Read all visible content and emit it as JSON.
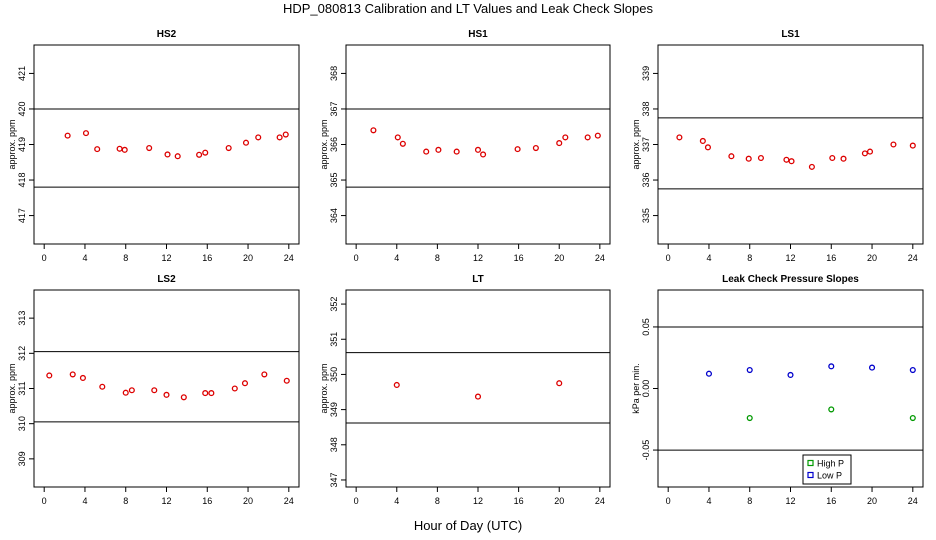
{
  "title": "HDP_080813  Calibration and LT Values and Leak Check Slopes",
  "x_axis_title": "Hour of Day (UTC)",
  "colors": {
    "calibration_points": "#dd0000",
    "high_p": "#009900",
    "low_p": "#0000cc",
    "axis": "#000000"
  },
  "chart_data": [
    {
      "type": "scatter",
      "title": "HS2",
      "ylabel": "approx. ppm",
      "xlim": [
        -1,
        25
      ],
      "ylim": [
        416.2,
        421.8
      ],
      "xticks": [
        0,
        4,
        8,
        12,
        16,
        20,
        24
      ],
      "xtick_labels": [
        "0",
        "4",
        "8",
        "12",
        "16",
        "20",
        "24"
      ],
      "yticks": [
        417,
        418,
        419,
        420,
        421
      ],
      "ytick_labels": [
        "417",
        "418",
        "419",
        "420",
        "421"
      ],
      "hlines": [
        420,
        417.8
      ],
      "series": [
        {
          "marker": "circle",
          "color": "#dd0000",
          "x": [
            2.3,
            4.1,
            5.2,
            7.4,
            7.9,
            10.3,
            12.1,
            13.1,
            15.2,
            15.8,
            18.1,
            19.8,
            21.0,
            23.1,
            23.7
          ],
          "y": [
            419.25,
            419.32,
            418.87,
            418.88,
            418.85,
            418.9,
            418.72,
            418.67,
            418.71,
            418.77,
            418.9,
            419.05,
            419.2,
            419.2,
            419.28
          ]
        }
      ]
    },
    {
      "type": "scatter",
      "title": "HS1",
      "ylabel": "approx. ppm",
      "xlim": [
        -1,
        25
      ],
      "ylim": [
        363.2,
        368.8
      ],
      "xticks": [
        0,
        4,
        8,
        12,
        16,
        20,
        24
      ],
      "xtick_labels": [
        "0",
        "4",
        "8",
        "12",
        "16",
        "20",
        "24"
      ],
      "yticks": [
        364,
        365,
        366,
        367,
        368
      ],
      "ytick_labels": [
        "364",
        "365",
        "366",
        "367",
        "368"
      ],
      "hlines": [
        367,
        364.8
      ],
      "series": [
        {
          "marker": "circle",
          "color": "#dd0000",
          "x": [
            1.7,
            4.1,
            4.6,
            6.9,
            8.1,
            9.9,
            12.0,
            12.5,
            15.9,
            17.7,
            20.0,
            20.6,
            22.8,
            23.8
          ],
          "y": [
            366.4,
            366.2,
            366.02,
            365.8,
            365.85,
            365.8,
            365.85,
            365.72,
            365.87,
            365.9,
            366.04,
            366.2,
            366.2,
            366.25
          ]
        }
      ]
    },
    {
      "type": "scatter",
      "title": "LS1",
      "ylabel": "approx. ppm",
      "xlim": [
        -1,
        25
      ],
      "ylim": [
        334.2,
        339.8
      ],
      "xticks": [
        0,
        4,
        8,
        12,
        16,
        20,
        24
      ],
      "xtick_labels": [
        "0",
        "4",
        "8",
        "12",
        "16",
        "20",
        "24"
      ],
      "yticks": [
        335,
        336,
        337,
        338,
        339
      ],
      "ytick_labels": [
        "335",
        "336",
        "337",
        "338",
        "339"
      ],
      "hlines": [
        337.75,
        335.75
      ],
      "series": [
        {
          "marker": "circle",
          "color": "#dd0000",
          "x": [
            1.1,
            3.4,
            3.9,
            6.2,
            7.9,
            9.1,
            11.6,
            12.1,
            14.1,
            16.1,
            17.2,
            19.3,
            19.8,
            22.1,
            24.0
          ],
          "y": [
            337.2,
            337.1,
            336.92,
            336.67,
            336.6,
            336.62,
            336.57,
            336.53,
            336.37,
            336.62,
            336.6,
            336.75,
            336.8,
            337.0,
            336.97
          ]
        }
      ]
    },
    {
      "type": "scatter",
      "title": "LS2",
      "ylabel": "approx. ppm",
      "xlim": [
        -1,
        25
      ],
      "ylim": [
        308.2,
        313.8
      ],
      "xticks": [
        0,
        4,
        8,
        12,
        16,
        20,
        24
      ],
      "xtick_labels": [
        "0",
        "4",
        "8",
        "12",
        "16",
        "20",
        "24"
      ],
      "yticks": [
        309,
        310,
        311,
        312,
        313
      ],
      "ytick_labels": [
        "309",
        "310",
        "311",
        "312",
        "313"
      ],
      "hlines": [
        312.05,
        310.05
      ],
      "series": [
        {
          "marker": "circle",
          "color": "#dd0000",
          "x": [
            0.5,
            2.8,
            3.8,
            5.7,
            8.0,
            8.6,
            10.8,
            12.0,
            13.7,
            15.8,
            16.4,
            18.7,
            19.7,
            21.6,
            23.8
          ],
          "y": [
            311.37,
            311.4,
            311.3,
            311.05,
            310.88,
            310.95,
            310.95,
            310.82,
            310.75,
            310.87,
            310.87,
            311.0,
            311.15,
            311.4,
            311.22
          ]
        }
      ]
    },
    {
      "type": "scatter",
      "title": "LT",
      "ylabel": "approx. ppm",
      "xlim": [
        -1,
        25
      ],
      "ylim": [
        346.8,
        352.4
      ],
      "xticks": [
        0,
        4,
        8,
        12,
        16,
        20,
        24
      ],
      "xtick_labels": [
        "0",
        "4",
        "8",
        "12",
        "16",
        "20",
        "24"
      ],
      "yticks": [
        347,
        348,
        349,
        350,
        351,
        352
      ],
      "ytick_labels": [
        "347",
        "348",
        "349",
        "350",
        "351",
        "352"
      ],
      "hlines": [
        350.62,
        348.62
      ],
      "series": [
        {
          "marker": "circle",
          "color": "#dd0000",
          "x": [
            4.0,
            12.0,
            20.0
          ],
          "y": [
            349.7,
            349.37,
            349.75
          ]
        }
      ]
    },
    {
      "type": "scatter",
      "title": "Leak Check Pressure Slopes",
      "ylabel": "kPa per min.",
      "xlim": [
        -1,
        25
      ],
      "ylim": [
        -0.08,
        0.08
      ],
      "xticks": [
        0,
        4,
        8,
        12,
        16,
        20,
        24
      ],
      "xtick_labels": [
        "0",
        "4",
        "8",
        "12",
        "16",
        "20",
        "24"
      ],
      "yticks": [
        -0.05,
        0.0,
        0.05
      ],
      "ytick_labels": [
        "-0.05",
        "0.00",
        "0.05"
      ],
      "hlines": [
        0.05,
        -0.05
      ],
      "legend": {
        "position": "bottom-center",
        "entries": [
          {
            "label": "High P",
            "color": "#009900"
          },
          {
            "label": "Low P",
            "color": "#0000cc"
          }
        ]
      },
      "series": [
        {
          "name": "High P",
          "marker": "circle",
          "color": "#009900",
          "x": [
            8,
            16,
            24
          ],
          "y": [
            -0.024,
            -0.017,
            -0.024
          ]
        },
        {
          "name": "Low P",
          "marker": "circle",
          "color": "#0000cc",
          "x": [
            4,
            8,
            12,
            16,
            20,
            24
          ],
          "y": [
            0.012,
            0.015,
            0.011,
            0.018,
            0.017,
            0.015
          ]
        }
      ]
    }
  ]
}
